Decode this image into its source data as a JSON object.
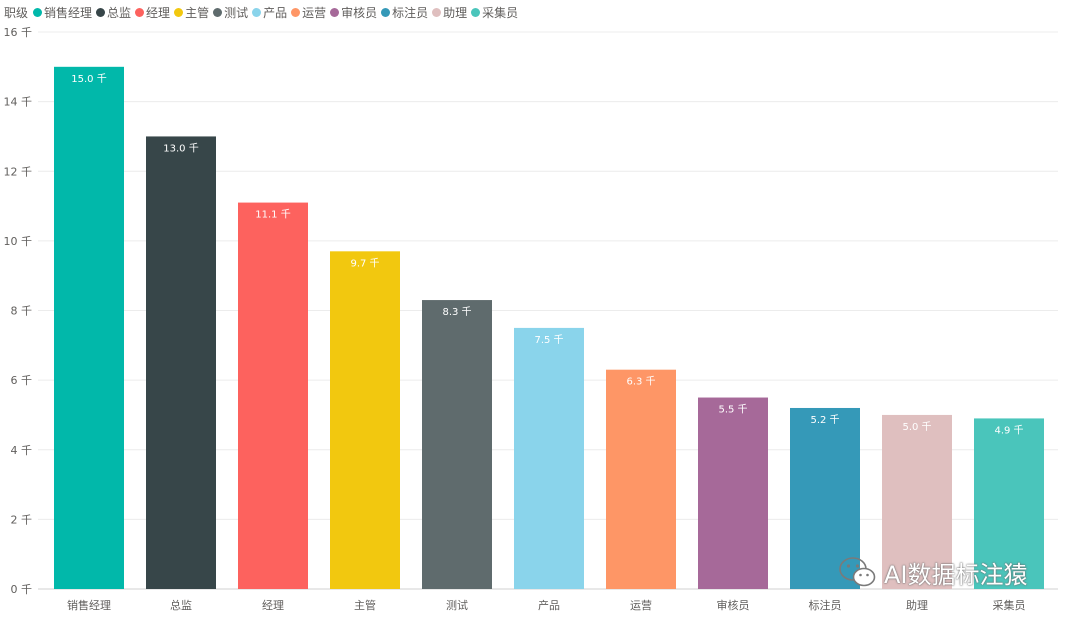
{
  "legend": {
    "title": "职级"
  },
  "chart_data": {
    "type": "bar",
    "xlabel": "",
    "ylabel": "",
    "categories": [
      "销售经理",
      "总监",
      "经理",
      "主管",
      "测试",
      "产品",
      "运营",
      "审核员",
      "标注员",
      "助理",
      "采集员"
    ],
    "values": [
      15.0,
      13.0,
      11.1,
      9.7,
      8.3,
      7.5,
      6.3,
      5.5,
      5.2,
      5.0,
      4.9
    ],
    "value_labels": [
      "15.0 千",
      "13.0 千",
      "11.1 千",
      "9.7 千",
      "8.3 千",
      "7.5 千",
      "6.3 千",
      "5.5 千",
      "5.2 千",
      "5.0 千",
      "4.9 千"
    ],
    "colors": [
      "#01b8aa",
      "#374649",
      "#fd625e",
      "#f2c80f",
      "#5f6b6d",
      "#8ad4eb",
      "#fe9666",
      "#a66999",
      "#3599b8",
      "#dfbfbf",
      "#4ac5bb"
    ],
    "ylim": [
      0,
      16
    ],
    "y_ticks": [
      0,
      2,
      4,
      6,
      8,
      10,
      12,
      14,
      16
    ],
    "y_tick_labels": [
      "0 千",
      "2 千",
      "4 千",
      "6 千",
      "8 千",
      "10 千",
      "12 千",
      "14 千",
      "16 千"
    ],
    "grid": true,
    "legend_position": "top-left"
  },
  "watermark": {
    "text": "AI数据标注猿",
    "icon": "wechat-icon"
  }
}
